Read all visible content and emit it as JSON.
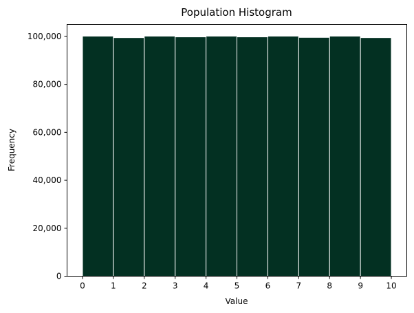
{
  "chart_data": {
    "type": "bar",
    "title": "Population Histogram",
    "xlabel": "Value",
    "ylabel": "Frequency",
    "bin_edges": [
      0,
      1,
      2,
      3,
      4,
      5,
      6,
      7,
      8,
      9,
      10
    ],
    "values": [
      100100,
      99500,
      100100,
      99800,
      100100,
      99800,
      100100,
      99600,
      100100,
      99500
    ],
    "xlim": [
      -0.5,
      10.5
    ],
    "ylim": [
      0,
      105000
    ],
    "x_ticks": [
      0,
      1,
      2,
      3,
      4,
      5,
      6,
      7,
      8,
      9,
      10
    ],
    "x_tick_labels": [
      "0",
      "1",
      "2",
      "3",
      "4",
      "5",
      "6",
      "7",
      "8",
      "9",
      "10"
    ],
    "y_ticks": [
      0,
      20000,
      40000,
      60000,
      80000,
      100000
    ],
    "y_tick_labels": [
      "0",
      "20,000",
      "40,000",
      "60,000",
      "80,000",
      "100,000"
    ],
    "bar_color": "#033022",
    "edge_color": "#ffffff",
    "grid": false
  }
}
